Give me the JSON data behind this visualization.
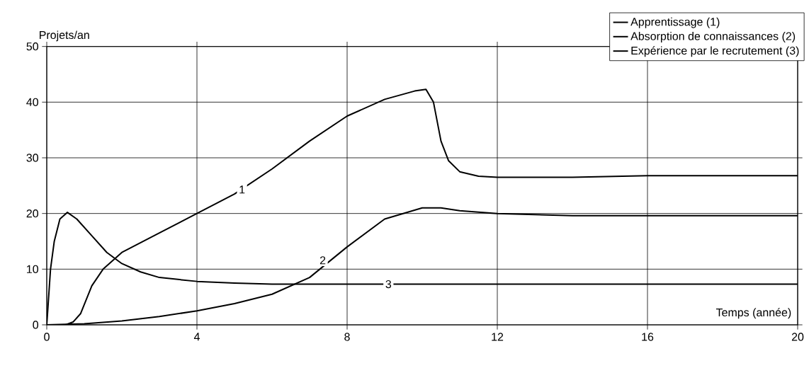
{
  "chart_data": {
    "type": "line",
    "xlabel": "Temps (année)",
    "ylabel": "Projets/an",
    "xlim": [
      0,
      20
    ],
    "ylim": [
      0,
      50
    ],
    "xticks": [
      0,
      4,
      8,
      12,
      16,
      20
    ],
    "yticks": [
      0,
      10,
      20,
      30,
      40,
      50
    ],
    "grid": true,
    "legend": "top right",
    "line_style": "solid",
    "series": [
      {
        "name": "Apprentissage (1)",
        "color": "#000000",
        "x": [
          0,
          0.5,
          0.7,
          0.9,
          1.2,
          1.5,
          2,
          3,
          4,
          5,
          6,
          7,
          8,
          9,
          9.8,
          10.1,
          10.3,
          10.5,
          10.7,
          11,
          11.5,
          12,
          14,
          16,
          20
        ],
        "values": [
          0,
          0,
          0.5,
          2,
          7,
          10,
          13,
          16.5,
          20,
          23.5,
          28,
          33,
          37.5,
          40.5,
          42,
          42.3,
          40,
          33,
          29.5,
          27.5,
          26.7,
          26.5,
          26.5,
          26.8,
          26.8
        ]
      },
      {
        "name": "Absorption de connaissances (2)",
        "color": "#000000",
        "x": [
          0,
          1,
          2,
          3,
          4,
          5,
          6,
          7,
          8,
          9,
          10,
          10.5,
          11,
          12,
          14,
          20
        ],
        "values": [
          0,
          0.2,
          0.7,
          1.5,
          2.5,
          3.8,
          5.5,
          8.5,
          14,
          19,
          21,
          21,
          20.5,
          20,
          19.6,
          19.6
        ]
      },
      {
        "name": "Expérience par le recrutement (3)",
        "color": "#000000",
        "x": [
          0,
          0.1,
          0.2,
          0.35,
          0.55,
          0.8,
          1.2,
          1.6,
          2,
          2.5,
          3,
          4,
          5,
          6,
          20
        ],
        "values": [
          0,
          10,
          15,
          19,
          20.2,
          19,
          16,
          13,
          11,
          9.5,
          8.5,
          7.8,
          7.5,
          7.3,
          7.3
        ]
      }
    ],
    "annotations": [
      {
        "text": "1",
        "x": 5.2,
        "y": 24.3
      },
      {
        "text": "2",
        "x": 7.35,
        "y": 11.6
      },
      {
        "text": "3",
        "x": 9.1,
        "y": 7.3
      }
    ]
  }
}
